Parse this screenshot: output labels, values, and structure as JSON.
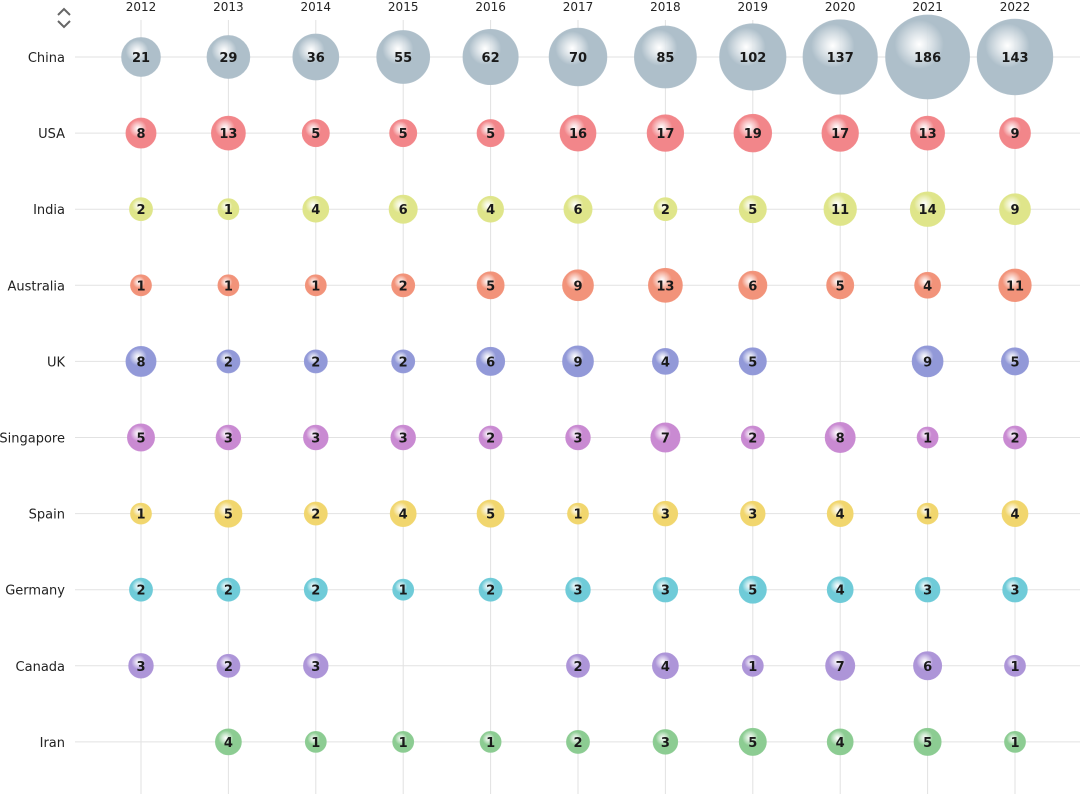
{
  "sort_icon": "sort-up-down-icon",
  "chart_data": {
    "type": "scatter",
    "subtype": "bubble-matrix",
    "x_categories": [
      "2012",
      "2013",
      "2014",
      "2015",
      "2016",
      "2017",
      "2018",
      "2019",
      "2020",
      "2021",
      "2022"
    ],
    "y_categories": [
      "China",
      "USA",
      "India",
      "Australia",
      "UK",
      "Singapore",
      "Spain",
      "Germany",
      "Canada",
      "Iran"
    ],
    "grid": true,
    "series": [
      {
        "category": "China",
        "color": "#aebfca",
        "values": [
          21,
          29,
          36,
          55,
          62,
          70,
          85,
          102,
          137,
          186,
          143
        ]
      },
      {
        "category": "USA",
        "color": "#f2868a",
        "values": [
          8,
          13,
          5,
          5,
          5,
          16,
          17,
          19,
          17,
          13,
          9
        ]
      },
      {
        "category": "India",
        "color": "#dfe58a",
        "values": [
          2,
          1,
          4,
          6,
          4,
          6,
          2,
          5,
          11,
          14,
          9
        ]
      },
      {
        "category": "Australia",
        "color": "#f2937a",
        "values": [
          1,
          1,
          1,
          2,
          5,
          9,
          13,
          6,
          5,
          4,
          11
        ]
      },
      {
        "category": "UK",
        "color": "#9299d8",
        "values": [
          8,
          2,
          2,
          2,
          6,
          9,
          4,
          5,
          null,
          9,
          5
        ]
      },
      {
        "category": "Singapore",
        "color": "#c98ad2",
        "values": [
          5,
          3,
          3,
          3,
          2,
          3,
          7,
          2,
          8,
          1,
          2
        ]
      },
      {
        "category": "Spain",
        "color": "#f1d66e",
        "values": [
          1,
          5,
          2,
          4,
          5,
          1,
          3,
          3,
          4,
          1,
          4
        ]
      },
      {
        "category": "Germany",
        "color": "#6fcbd8",
        "values": [
          2,
          2,
          2,
          1,
          2,
          3,
          3,
          5,
          4,
          3,
          3
        ]
      },
      {
        "category": "Canada",
        "color": "#ad95d8",
        "values": [
          3,
          2,
          3,
          null,
          null,
          2,
          4,
          1,
          7,
          6,
          1
        ]
      },
      {
        "category": "Iran",
        "color": "#8ccc92",
        "values": [
          null,
          4,
          1,
          1,
          1,
          2,
          3,
          5,
          4,
          5,
          1
        ]
      }
    ]
  }
}
